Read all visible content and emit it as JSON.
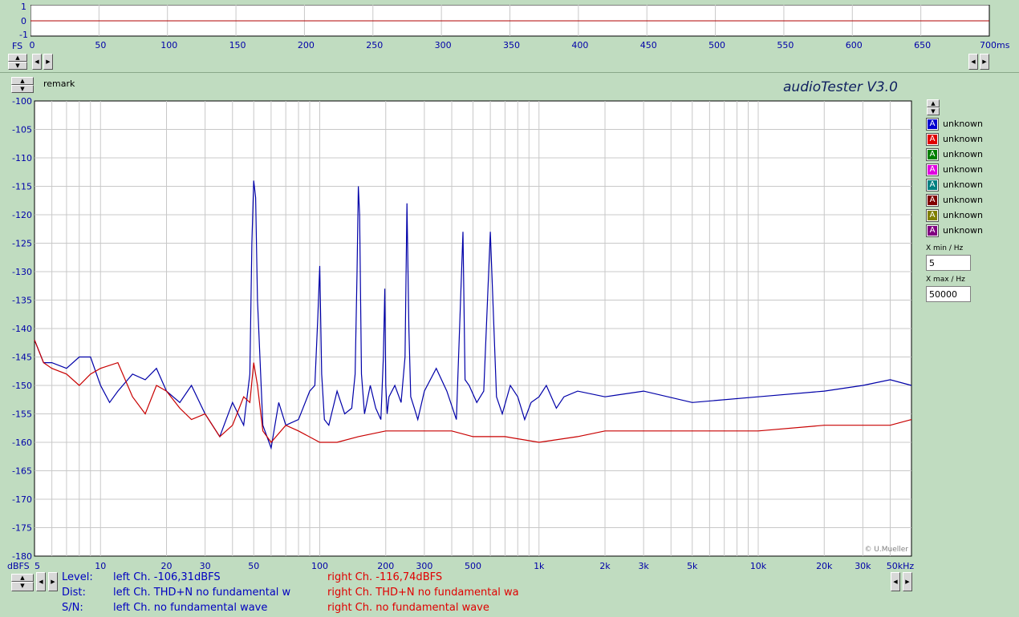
{
  "top_scope": {
    "y_labels": [
      "1",
      "0",
      "-1"
    ],
    "fs_label": "FS",
    "x_ticks": [
      "0",
      "50",
      "100",
      "150",
      "200",
      "250",
      "300",
      "350",
      "400",
      "450",
      "500",
      "550",
      "600",
      "650",
      "700ms"
    ]
  },
  "remark_label": "remark",
  "app_title": "audioTester  V3.0",
  "copyright": "© U.Mueller",
  "y_unit_label": "dBFS",
  "colors": {
    "left": "#0000a8",
    "right": "#c80000",
    "background": "#c0dcc0"
  },
  "chart_data": {
    "type": "line",
    "x_scale": "log",
    "xlim": [
      5,
      50000
    ],
    "ylim": [
      -180,
      -100
    ],
    "grid": true,
    "y_ticks": [
      -100,
      -105,
      -110,
      -115,
      -120,
      -125,
      -130,
      -135,
      -140,
      -145,
      -150,
      -155,
      -160,
      -165,
      -170,
      -175,
      -180
    ],
    "y_tick_labels": [
      "-100",
      "-105",
      "-110",
      "-115",
      "-120",
      "-125",
      "-130",
      "-135",
      "-140",
      "-145",
      "-150",
      "-155",
      "-160",
      "-165",
      "-170",
      "-175",
      "-180"
    ],
    "x_ticks": [
      5,
      10,
      20,
      30,
      50,
      100,
      200,
      300,
      500,
      1000,
      2000,
      3000,
      5000,
      10000,
      20000,
      30000,
      50000
    ],
    "x_tick_labels": [
      "5",
      "10",
      "20",
      "30",
      "50",
      "100",
      "200",
      "300",
      "500",
      "1k",
      "2k",
      "3k",
      "5k",
      "10k",
      "20k",
      "30k",
      "50kHz"
    ],
    "series": [
      {
        "x": [
          5,
          5.5,
          6,
          7,
          8,
          9,
          10,
          11,
          12,
          14,
          16,
          18,
          20,
          23,
          26,
          30,
          35,
          40,
          45,
          48,
          49,
          50,
          51,
          52,
          55,
          60,
          65,
          70,
          80,
          90,
          95,
          98,
          100,
          102,
          105,
          110,
          120,
          130,
          140,
          145,
          148,
          150,
          152,
          155,
          160,
          170,
          180,
          190,
          195,
          198,
          200,
          203,
          207,
          220,
          235,
          245,
          250,
          255,
          260,
          270,
          280,
          300,
          340,
          380,
          420,
          450,
          460,
          480,
          520,
          560,
          600,
          640,
          680,
          740,
          800,
          860,
          920,
          1000,
          1080,
          1200,
          1300,
          1500,
          2000,
          3000,
          5000,
          10000,
          20000,
          30000,
          40000,
          50000
        ],
        "y": [
          -142,
          -146,
          -146,
          -147,
          -145,
          -145,
          -150,
          -153,
          -151,
          -148,
          -149,
          -147,
          -151,
          -153,
          -150,
          -155,
          -159,
          -153,
          -157,
          -148,
          -125,
          -114,
          -117,
          -135,
          -157,
          -161,
          -153,
          -157,
          -156,
          -151,
          -150,
          -138,
          -129,
          -148,
          -156,
          -157,
          -151,
          -155,
          -154,
          -148,
          -130,
          -115,
          -120,
          -148,
          -155,
          -150,
          -154,
          -156,
          -145,
          -133,
          -150,
          -155,
          -152,
          -150,
          -153,
          -145,
          -118,
          -140,
          -152,
          -154,
          -156,
          -151,
          -147,
          -151,
          -156,
          -123,
          -149,
          -150,
          -153,
          -151,
          -123,
          -152,
          -155,
          -150,
          -152,
          -156,
          -153,
          -152,
          -150,
          -154,
          -152,
          -151,
          -152,
          -151,
          -153,
          -152,
          -151,
          -150,
          -149,
          -150
        ]
      },
      {
        "x": [
          5,
          5.5,
          6,
          7,
          8,
          9,
          10,
          12,
          14,
          16,
          18,
          20,
          23,
          26,
          30,
          35,
          40,
          45,
          48,
          50,
          52,
          55,
          60,
          70,
          80,
          100,
          120,
          150,
          200,
          300,
          400,
          500,
          700,
          1000,
          1500,
          2000,
          3000,
          5000,
          10000,
          20000,
          30000,
          40000,
          50000
        ],
        "y": [
          -142,
          -146,
          -147,
          -148,
          -150,
          -148,
          -147,
          -146,
          -152,
          -155,
          -150,
          -151,
          -154,
          -156,
          -155,
          -159,
          -157,
          -152,
          -153,
          -146,
          -150,
          -158,
          -160,
          -157,
          -158,
          -160,
          -160,
          -159,
          -158,
          -158,
          -158,
          -159,
          -159,
          -160,
          -159,
          -158,
          -158,
          -158,
          -158,
          -157,
          -157,
          -157,
          -156
        ]
      }
    ]
  },
  "legend": [
    {
      "glyph": "A",
      "color": "#0000d0",
      "label": "unknown"
    },
    {
      "glyph": "A",
      "color": "#e00000",
      "label": "unknown"
    },
    {
      "glyph": "A",
      "color": "#008000",
      "label": "unknown"
    },
    {
      "glyph": "A",
      "color": "#e000e0",
      "label": "unknown"
    },
    {
      "glyph": "A",
      "color": "#008080",
      "label": "unknown"
    },
    {
      "glyph": "A",
      "color": "#800000",
      "label": "unknown"
    },
    {
      "glyph": "A",
      "color": "#808000",
      "label": "unknown"
    },
    {
      "glyph": "A",
      "color": "#800080",
      "label": "unknown"
    }
  ],
  "x_min": {
    "label": "X min / Hz",
    "value": "5"
  },
  "x_max": {
    "label": "X max / Hz",
    "value": "50000"
  },
  "status": {
    "level_label": "Level:",
    "dist_label": "Dist:",
    "sn_label": "S/N:",
    "left_level": "left Ch. -106,31dBFS",
    "left_dist": "left Ch. THD+N  no fundamental w",
    "left_sn": "left Ch.  no fundamental wave",
    "right_level": "right Ch. -116,74dBFS",
    "right_dist": "right Ch. THD+N  no fundamental wa",
    "right_sn": "right Ch.  no fundamental wave"
  }
}
